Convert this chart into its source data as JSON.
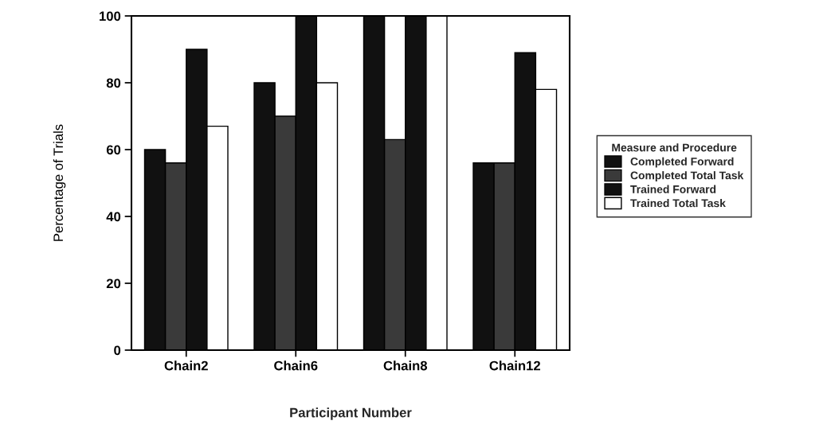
{
  "chart_data": {
    "type": "bar",
    "xlabel": "Participant Number",
    "ylabel": "Percentage of Trials",
    "legend_title": "Measure and Procedure",
    "categories": [
      "Chain2",
      "Chain6",
      "Chain8",
      "Chain12"
    ],
    "series": [
      {
        "name": "Completed Forward",
        "color": "#111111",
        "values": [
          60,
          80,
          100,
          56
        ]
      },
      {
        "name": "Completed Total Task",
        "color": "#3a3a3a",
        "values": [
          56,
          70,
          63,
          56
        ]
      },
      {
        "name": "Trained Forward",
        "color": "#111111",
        "values": [
          90,
          100,
          100,
          89
        ]
      },
      {
        "name": "Trained Total Task",
        "color": "#ffffff",
        "values": [
          67,
          80,
          100,
          78
        ]
      }
    ],
    "ylim": [
      0,
      100
    ],
    "yticks": [
      0,
      20,
      40,
      60,
      80,
      100
    ],
    "grid": false,
    "legend": "right"
  }
}
